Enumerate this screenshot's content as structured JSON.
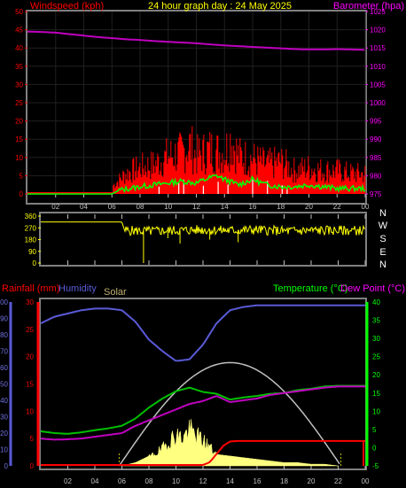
{
  "header": {
    "left_label": "Windspeed (kph)",
    "title": "24 hour graph day : 24 May 2025",
    "right_label": "Barometer (hpa)"
  },
  "colors": {
    "frame": "#808080",
    "left_axis_panel1": "#ff0000",
    "right_axis_panel1": "#ff00ff",
    "title": "#ffff00",
    "wind": "#ff0000",
    "wind_avg": "#00ff00",
    "gust_marker": "#ffffff",
    "barometer": "#c000c0",
    "direction": "#ffff00",
    "compass": "#ffffff",
    "rainfall": "#ff0000",
    "humidity": "#5a5ad8",
    "solar": "#ffff80",
    "solar_curve": "#c0c0c0",
    "temperature": "#00ff00",
    "dewpoint": "#ff00ff",
    "temp_line": "#00c000",
    "dew_line": "#c000c0"
  },
  "panel3_labels": {
    "rainfall": "Rainfall (mm)",
    "humidity": "Humidity",
    "solar": "Solar",
    "temperature": "Temperature (°C)",
    "dewpoint": "Dew Point (°C)"
  },
  "compass_labels": [
    "N",
    "W",
    "S",
    "E",
    "N"
  ],
  "chart_data": [
    {
      "type": "line",
      "title": "24 hour graph day : 24 May 2025",
      "x_tick_labels": [
        "02",
        "04",
        "06",
        "08",
        "10",
        "12",
        "14",
        "16",
        "18",
        "20",
        "22",
        "00"
      ],
      "xlim_hours": [
        0,
        24
      ],
      "left_axis": {
        "label": "Windspeed (kph)",
        "ylim": [
          0,
          50
        ],
        "ticks": [
          "0",
          "5",
          "10",
          "15",
          "20",
          "25",
          "30",
          "35",
          "40",
          "45",
          "50"
        ]
      },
      "right_axis": {
        "label": "Barometer (hpa)",
        "ylim": [
          975,
          1025
        ],
        "ticks": [
          "975",
          "980",
          "985",
          "990",
          "995",
          "1000",
          "1005",
          "1010",
          "1015",
          "1020",
          "1025"
        ]
      },
      "series": [
        {
          "name": "Windspeed (kph)",
          "axis": "left",
          "x": [
            0,
            6,
            6.1,
            7,
            8,
            9,
            10,
            11,
            11.5,
            12,
            13,
            14,
            14.5,
            15,
            16,
            17,
            18,
            19,
            20,
            21,
            22,
            23,
            24
          ],
          "y": [
            0,
            0,
            3,
            7,
            9,
            10,
            13,
            14,
            17,
            13,
            15,
            14,
            19,
            13,
            12,
            10,
            11,
            8,
            9,
            8,
            8,
            7,
            7
          ]
        },
        {
          "name": "Wind average",
          "axis": "left",
          "x": [
            0,
            6,
            6.5,
            8,
            9,
            10,
            11,
            12,
            13,
            13.5,
            14,
            15,
            16,
            17,
            18,
            19,
            20,
            21,
            22,
            23,
            24
          ],
          "y": [
            0,
            0,
            1,
            2,
            2.5,
            3,
            3.5,
            3,
            4.5,
            5,
            4,
            2.5,
            4,
            2.5,
            2,
            2,
            2.5,
            2,
            1.5,
            1.5,
            1.5
          ]
        },
        {
          "name": "Barometer (hpa)",
          "axis": "right",
          "x": [
            0,
            1,
            2,
            3,
            4,
            5,
            6,
            7,
            8,
            9,
            10,
            11,
            12,
            13,
            14,
            15,
            16,
            17,
            18,
            19,
            20,
            21,
            22,
            23,
            24
          ],
          "y": [
            1019.5,
            1019.4,
            1019.2,
            1018.8,
            1018.4,
            1018.0,
            1017.7,
            1017.4,
            1017.2,
            1016.9,
            1016.7,
            1016.5,
            1016.3,
            1016.0,
            1015.7,
            1015.5,
            1015.3,
            1015.1,
            1014.9,
            1014.7,
            1014.6,
            1014.6,
            1014.7,
            1014.6,
            1014.5
          ]
        }
      ]
    },
    {
      "type": "line",
      "y_tick_labels": [
        "0",
        "90",
        "180",
        "270",
        "360"
      ],
      "ylim": [
        0,
        360
      ],
      "x_tick_labels": [
        "02",
        "04",
        "06",
        "08",
        "10",
        "12",
        "14",
        "16",
        "18",
        "20",
        "22",
        "00"
      ],
      "series": [
        {
          "name": "Wind direction",
          "x": [
            0,
            6,
            6.2,
            8,
            10,
            12,
            14,
            16,
            18,
            20,
            22,
            24
          ],
          "y": [
            315,
            315,
            250,
            245,
            250,
            255,
            250,
            255,
            245,
            250,
            250,
            250
          ]
        }
      ]
    },
    {
      "type": "line",
      "x_tick_labels": [
        "02",
        "04",
        "06",
        "08",
        "10",
        "12",
        "14",
        "16",
        "18",
        "20",
        "22",
        "00"
      ],
      "left_axis": {
        "label": "Rainfall (mm)",
        "ylim": [
          0,
          30
        ],
        "ticks": [
          "0",
          "5",
          "10",
          "15",
          "20",
          "25",
          "30"
        ]
      },
      "humidity_axis": {
        "label": "Humidity",
        "ylim": [
          0,
          100
        ],
        "ticks": [
          "0",
          "10",
          "20",
          "30",
          "40",
          "50",
          "60",
          "70",
          "80",
          "90",
          "100"
        ]
      },
      "right_axis": {
        "label": "Temperature (°C)",
        "ylim": [
          -5,
          40
        ],
        "ticks": [
          "-5",
          "0",
          "5",
          "10",
          "15",
          "20",
          "25",
          "30",
          "35",
          "40"
        ]
      },
      "series": [
        {
          "name": "Humidity",
          "axis": "humidity",
          "x": [
            0,
            1,
            2,
            3,
            4,
            5,
            6,
            7,
            8,
            9,
            10,
            11,
            12,
            13,
            14,
            15,
            16,
            17,
            18,
            19,
            20,
            21,
            22,
            23,
            24
          ],
          "y": [
            87,
            91,
            93,
            95,
            96,
            96,
            95,
            88,
            77,
            70,
            64,
            65,
            74,
            87,
            95,
            97,
            98,
            98,
            98,
            98,
            98,
            98,
            98,
            98,
            98
          ]
        },
        {
          "name": "Temperature (°C)",
          "axis": "right",
          "x": [
            0,
            1,
            2,
            3,
            4,
            5,
            6,
            7,
            8,
            9,
            10,
            11,
            12,
            13,
            14,
            15,
            16,
            17,
            18,
            19,
            20,
            21,
            22,
            23,
            24
          ],
          "y": [
            4.5,
            4,
            3.8,
            4.2,
            4.8,
            5.3,
            6,
            8,
            11,
            13.5,
            15.5,
            16.5,
            15.3,
            14.8,
            13.2,
            13.8,
            14.2,
            14.8,
            15,
            15.8,
            16.2,
            16.8,
            17,
            17,
            17
          ]
        },
        {
          "name": "Dew Point (°C)",
          "axis": "right",
          "x": [
            0,
            1,
            2,
            3,
            4,
            5,
            6,
            7,
            8,
            9,
            10,
            11,
            12,
            13,
            14,
            15,
            16,
            17,
            18,
            19,
            20,
            21,
            22,
            23,
            24
          ],
          "y": [
            2.5,
            2.2,
            2.3,
            2.5,
            3,
            3.5,
            4,
            6,
            7.5,
            9,
            10.5,
            12,
            12.8,
            14.2,
            12.5,
            13,
            13.5,
            14.5,
            15,
            15.5,
            16,
            16.5,
            16.8,
            16.8,
            16.8
          ]
        },
        {
          "name": "Rainfall (mm)",
          "axis": "left",
          "x": [
            0,
            12,
            12.5,
            13,
            13.5,
            14,
            14.5,
            24
          ],
          "y": [
            0,
            0,
            0.5,
            2,
            3.5,
            4.3,
            4.4,
            4.4
          ]
        },
        {
          "name": "Solar",
          "axis": "solar",
          "x": [
            0,
            6,
            7,
            8,
            9,
            9.5,
            10,
            10.5,
            11,
            11.5,
            12,
            12.5,
            13,
            14,
            15,
            16,
            17,
            18,
            19,
            20,
            21,
            22,
            24
          ],
          "y": [
            0,
            0,
            2,
            6,
            12,
            18,
            22,
            20,
            26,
            22,
            18,
            14,
            7,
            6,
            5,
            4,
            3,
            2,
            2,
            1,
            1,
            0,
            0
          ]
        },
        {
          "name": "Solar theoretical",
          "axis": "solar",
          "x": [
            5.8,
            14,
            22.2
          ],
          "y": [
            0,
            63,
            0
          ]
        }
      ]
    }
  ]
}
